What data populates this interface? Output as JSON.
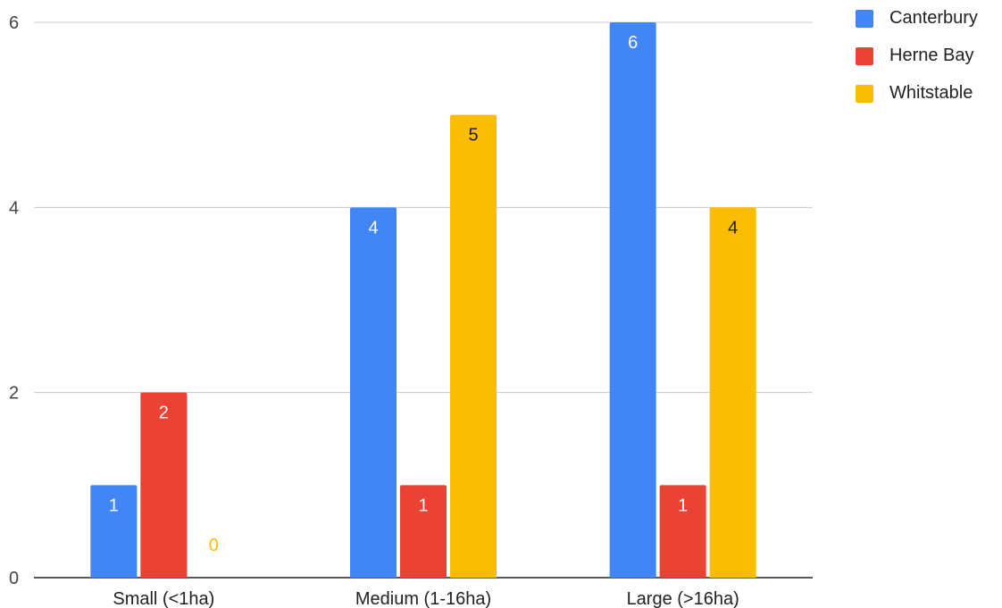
{
  "chart_data": {
    "type": "bar",
    "categories": [
      "Small (<1ha)",
      "Medium (1-16ha)",
      "Large (>16ha)"
    ],
    "series": [
      {
        "name": "Canterbury",
        "values": [
          1,
          4,
          6
        ],
        "color": "#4285F4",
        "label_color": "#ffffff"
      },
      {
        "name": "Herne Bay",
        "values": [
          2,
          1,
          1
        ],
        "color": "#EA4335",
        "label_color": "#ffffff"
      },
      {
        "name": "Whitstable",
        "values": [
          0,
          5,
          4
        ],
        "color": "#FBBC04",
        "label_color": "#222222"
      }
    ],
    "yticks": [
      "0",
      "2",
      "4",
      "6"
    ],
    "ylim": [
      0,
      6
    ],
    "grid": true,
    "legend_position": "top-right"
  }
}
